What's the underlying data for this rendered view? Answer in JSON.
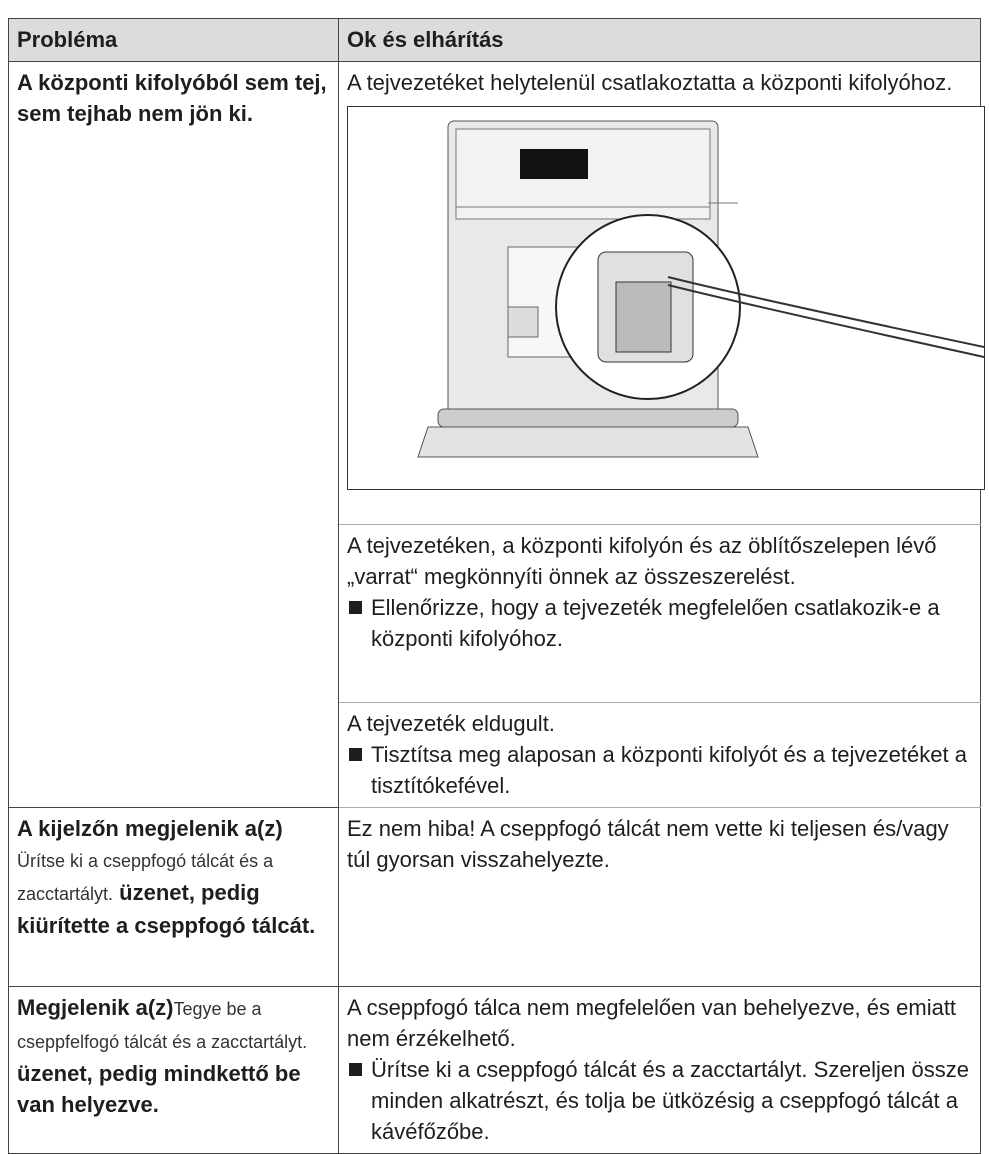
{
  "table": {
    "header": [
      "Probléma",
      "Ok és elhárítás"
    ],
    "rows": [
      {
        "problem": [
          "A központi kifolyóból sem tej, sem tejhab nem jön ki."
        ],
        "causes": [
          {
            "text": "A tejvezetéket helytelenül csatlakoztatta a központi kifolyóhoz."
          },
          {
            "text": "A tejvezetéken, a központi kifolyón és az öblítőszelepen lévő „varrat“ megkönnyíti önnek az összeszerelést.",
            "action": "Ellenőrizze, hogy a tejvezeték megfelelően csatlakozik-e a központi kifolyóhoz."
          },
          {
            "text": "A tejvezeték eldugult.",
            "action": "Tisztítsa meg alaposan a központi kifolyót és a tejvezetéket a tisztítókefével."
          }
        ]
      },
      {
        "problem": [
          "A kijelzőn megjelenik a(z)",
          "Ürítse ki a cseppfogó tálcát és a zacctartályt.",
          "üzenet, pedig kiürítette a cseppfogó tálcát."
        ],
        "causes": [
          {
            "text": "Ez nem hiba! A cseppfogó tálcát nem vette ki teljesen és/vagy túl gyorsan visszahelyezte."
          }
        ]
      },
      {
        "problem": [
          "Megjelenik a(z)",
          "Tegye be a cseppfelfogó tálcát és a zacctartályt.",
          "üzenet, pedig mindkettő be van helyezve."
        ],
        "causes": [
          {
            "text": "A cseppfogó tálca nem megfelelően van behelyezve, és emiatt nem érzékelhető.",
            "action": "Ürítse ki a cseppfogó tálcát és a zacctartályt. Szereljen össze minden alkatrészt, és tolja be ütközésig a cseppfogó tálcát a kávéfőzőbe."
          }
        ]
      }
    ]
  }
}
